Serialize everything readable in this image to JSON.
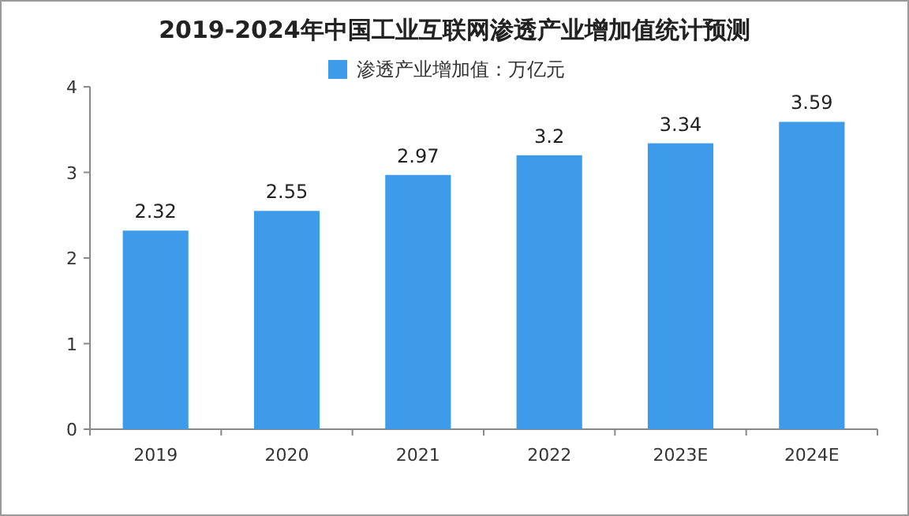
{
  "chart_data": {
    "type": "bar",
    "title": "2019-2024年中国工业互联网渗透产业增加值统计预测",
    "categories": [
      "2019",
      "2020",
      "2021",
      "2022",
      "2023E",
      "2024E"
    ],
    "series": [
      {
        "name": "渗透产业增加值：万亿元",
        "color": "#3d9be9",
        "values": [
          2.32,
          2.55,
          2.97,
          3.2,
          3.34,
          3.59
        ]
      }
    ],
    "ylim": [
      0,
      4
    ],
    "yticks": [
      0,
      1,
      2,
      3,
      4
    ],
    "data_labels": true,
    "legend": "top",
    "grid": false
  }
}
